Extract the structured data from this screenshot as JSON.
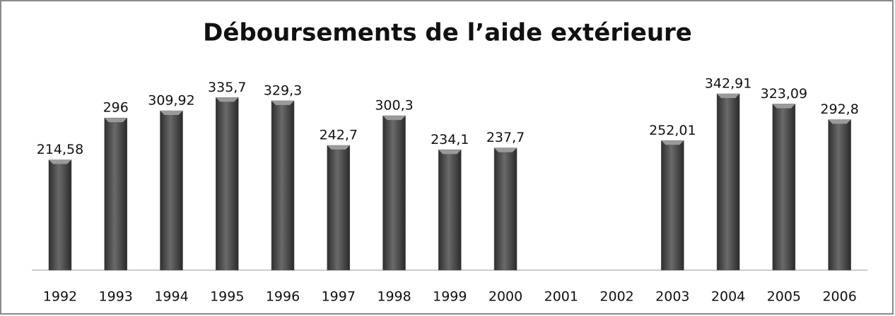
{
  "chart_data": {
    "type": "bar",
    "title": "Déboursements de l’aide extérieure",
    "categories": [
      "1992",
      "1993",
      "1994",
      "1995",
      "1996",
      "1997",
      "1998",
      "1999",
      "2000",
      "2001",
      "2002",
      "2003",
      "2004",
      "2005",
      "2006"
    ],
    "values": [
      214.58,
      296,
      309.92,
      335.7,
      329.3,
      242.7,
      300.3,
      234.1,
      237.7,
      null,
      null,
      252.01,
      342.91,
      323.09,
      292.8
    ],
    "value_labels": [
      "214,58",
      "296",
      "309,92",
      "335,7",
      "329,3",
      "242,7",
      "300,3",
      "234,1",
      "237,7",
      null,
      null,
      "252,01",
      "342,91",
      "323,09",
      "292,8"
    ],
    "color": "#555555",
    "grid": false
  }
}
